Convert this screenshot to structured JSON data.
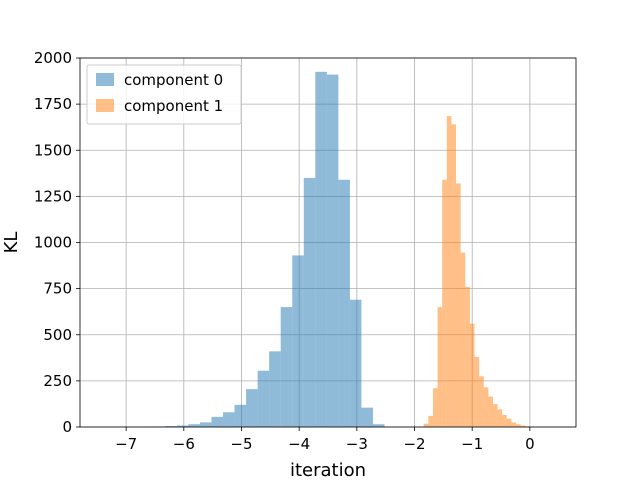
{
  "chart_data": {
    "type": "bar",
    "title": "",
    "xlabel": "iteration",
    "ylabel": "KL",
    "xlim": [
      -7.8,
      0.8
    ],
    "ylim": [
      0,
      2000
    ],
    "xticks": [
      -7,
      -6,
      -5,
      -4,
      -3,
      -2,
      -1,
      0
    ],
    "yticks": [
      0,
      250,
      500,
      750,
      1000,
      1250,
      1500,
      1750,
      2000
    ],
    "grid": true,
    "legend_position": "top-left",
    "series": [
      {
        "name": "component 0",
        "color": "#1f77b4",
        "opacity": 0.5,
        "bin_edges": [
          -7.32,
          -7.12,
          -6.92,
          -6.72,
          -6.52,
          -6.32,
          -6.12,
          -5.92,
          -5.72,
          -5.52,
          -5.32,
          -5.12,
          -4.92,
          -4.72,
          -4.52,
          -4.32,
          -4.12,
          -3.92,
          -3.72,
          -3.52,
          -3.32,
          -3.12,
          -2.92,
          -2.72,
          -2.52
        ],
        "counts": [
          1,
          1,
          1,
          2,
          3,
          5,
          8,
          15,
          25,
          55,
          80,
          120,
          205,
          305,
          410,
          650,
          930,
          1350,
          1925,
          1910,
          1340,
          690,
          105,
          15
        ]
      },
      {
        "name": "component 1",
        "color": "#ff7f0e",
        "opacity": 0.5,
        "bin_edges": [
          -1.92,
          -1.84,
          -1.76,
          -1.68,
          -1.6,
          -1.52,
          -1.44,
          -1.36,
          -1.28,
          -1.2,
          -1.12,
          -1.04,
          -0.96,
          -0.88,
          -0.8,
          -0.72,
          -0.64,
          -0.56,
          -0.48,
          -0.4,
          -0.32,
          -0.24,
          -0.16,
          -0.08,
          0.0,
          0.08,
          0.16
        ],
        "counts": [
          3,
          18,
          60,
          210,
          650,
          1340,
          1685,
          1640,
          1320,
          945,
          760,
          560,
          380,
          275,
          215,
          165,
          125,
          95,
          65,
          45,
          25,
          15,
          8,
          4,
          2,
          1
        ]
      }
    ]
  }
}
